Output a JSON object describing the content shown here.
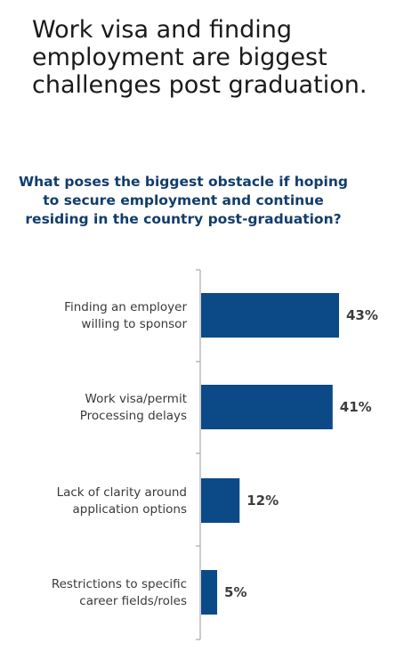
{
  "headline": "Work visa and finding employment are biggest challenges post graduation.",
  "chart_data": {
    "type": "bar",
    "orientation": "horizontal",
    "title": "What poses the biggest obstacle if hoping to secure employment and continue residing in the country post-graduation?",
    "categories": [
      [
        "Finding an employer",
        "willing to sponsor"
      ],
      [
        "Work visa/permit",
        "Processing delays"
      ],
      [
        "Lack of clarity around",
        "application options"
      ],
      [
        "Restrictions to specific",
        "career fields/roles"
      ]
    ],
    "values": [
      43,
      41,
      12,
      5
    ],
    "value_labels": [
      "43%",
      "41%",
      "12%",
      "5%"
    ],
    "xlim": [
      0,
      45
    ],
    "grid": false,
    "legend": "none",
    "bar_color": "#0c4a87"
  }
}
